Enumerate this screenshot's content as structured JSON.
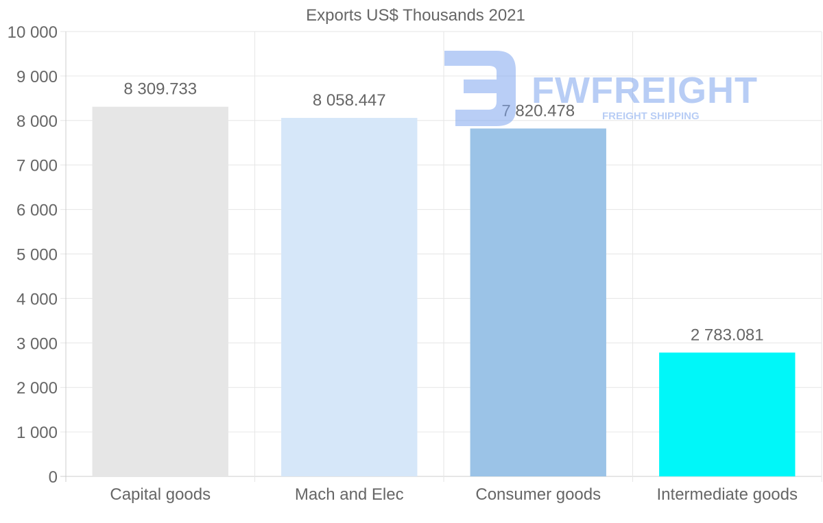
{
  "chart_data": {
    "type": "bar",
    "title": "Exports US$ Thousands 2021",
    "categories": [
      "Capital goods",
      "Mach and Elec",
      "Consumer goods",
      "Intermediate goods"
    ],
    "values": [
      8309.733,
      8058.447,
      7820.478,
      2783.081
    ],
    "value_labels": [
      "8 309.733",
      "8 058.447",
      "7 820.478",
      "2 783.081"
    ],
    "bar_colors": [
      "#e6e6e6",
      "#d6e7f9",
      "#9bc3e7",
      "#00f7f9"
    ],
    "xlabel": "",
    "ylabel": "",
    "ylim": [
      0,
      10000
    ],
    "y_ticks": [
      0,
      1000,
      2000,
      3000,
      4000,
      5000,
      6000,
      7000,
      8000,
      9000,
      10000
    ],
    "y_tick_labels": [
      "0",
      "1 000",
      "2 000",
      "3 000",
      "4 000",
      "5 000",
      "6 000",
      "7 000",
      "8 000",
      "9 000",
      "10 000"
    ],
    "grid": true,
    "legend": "none"
  },
  "watermark": {
    "brand": "FWFREIGHT",
    "tagline": "FREIGHT SHIPPING",
    "color": "#7fa6ee"
  },
  "colors": {
    "text": "#666666",
    "grid": "#e6e6e6",
    "axis": "#cccccc"
  }
}
